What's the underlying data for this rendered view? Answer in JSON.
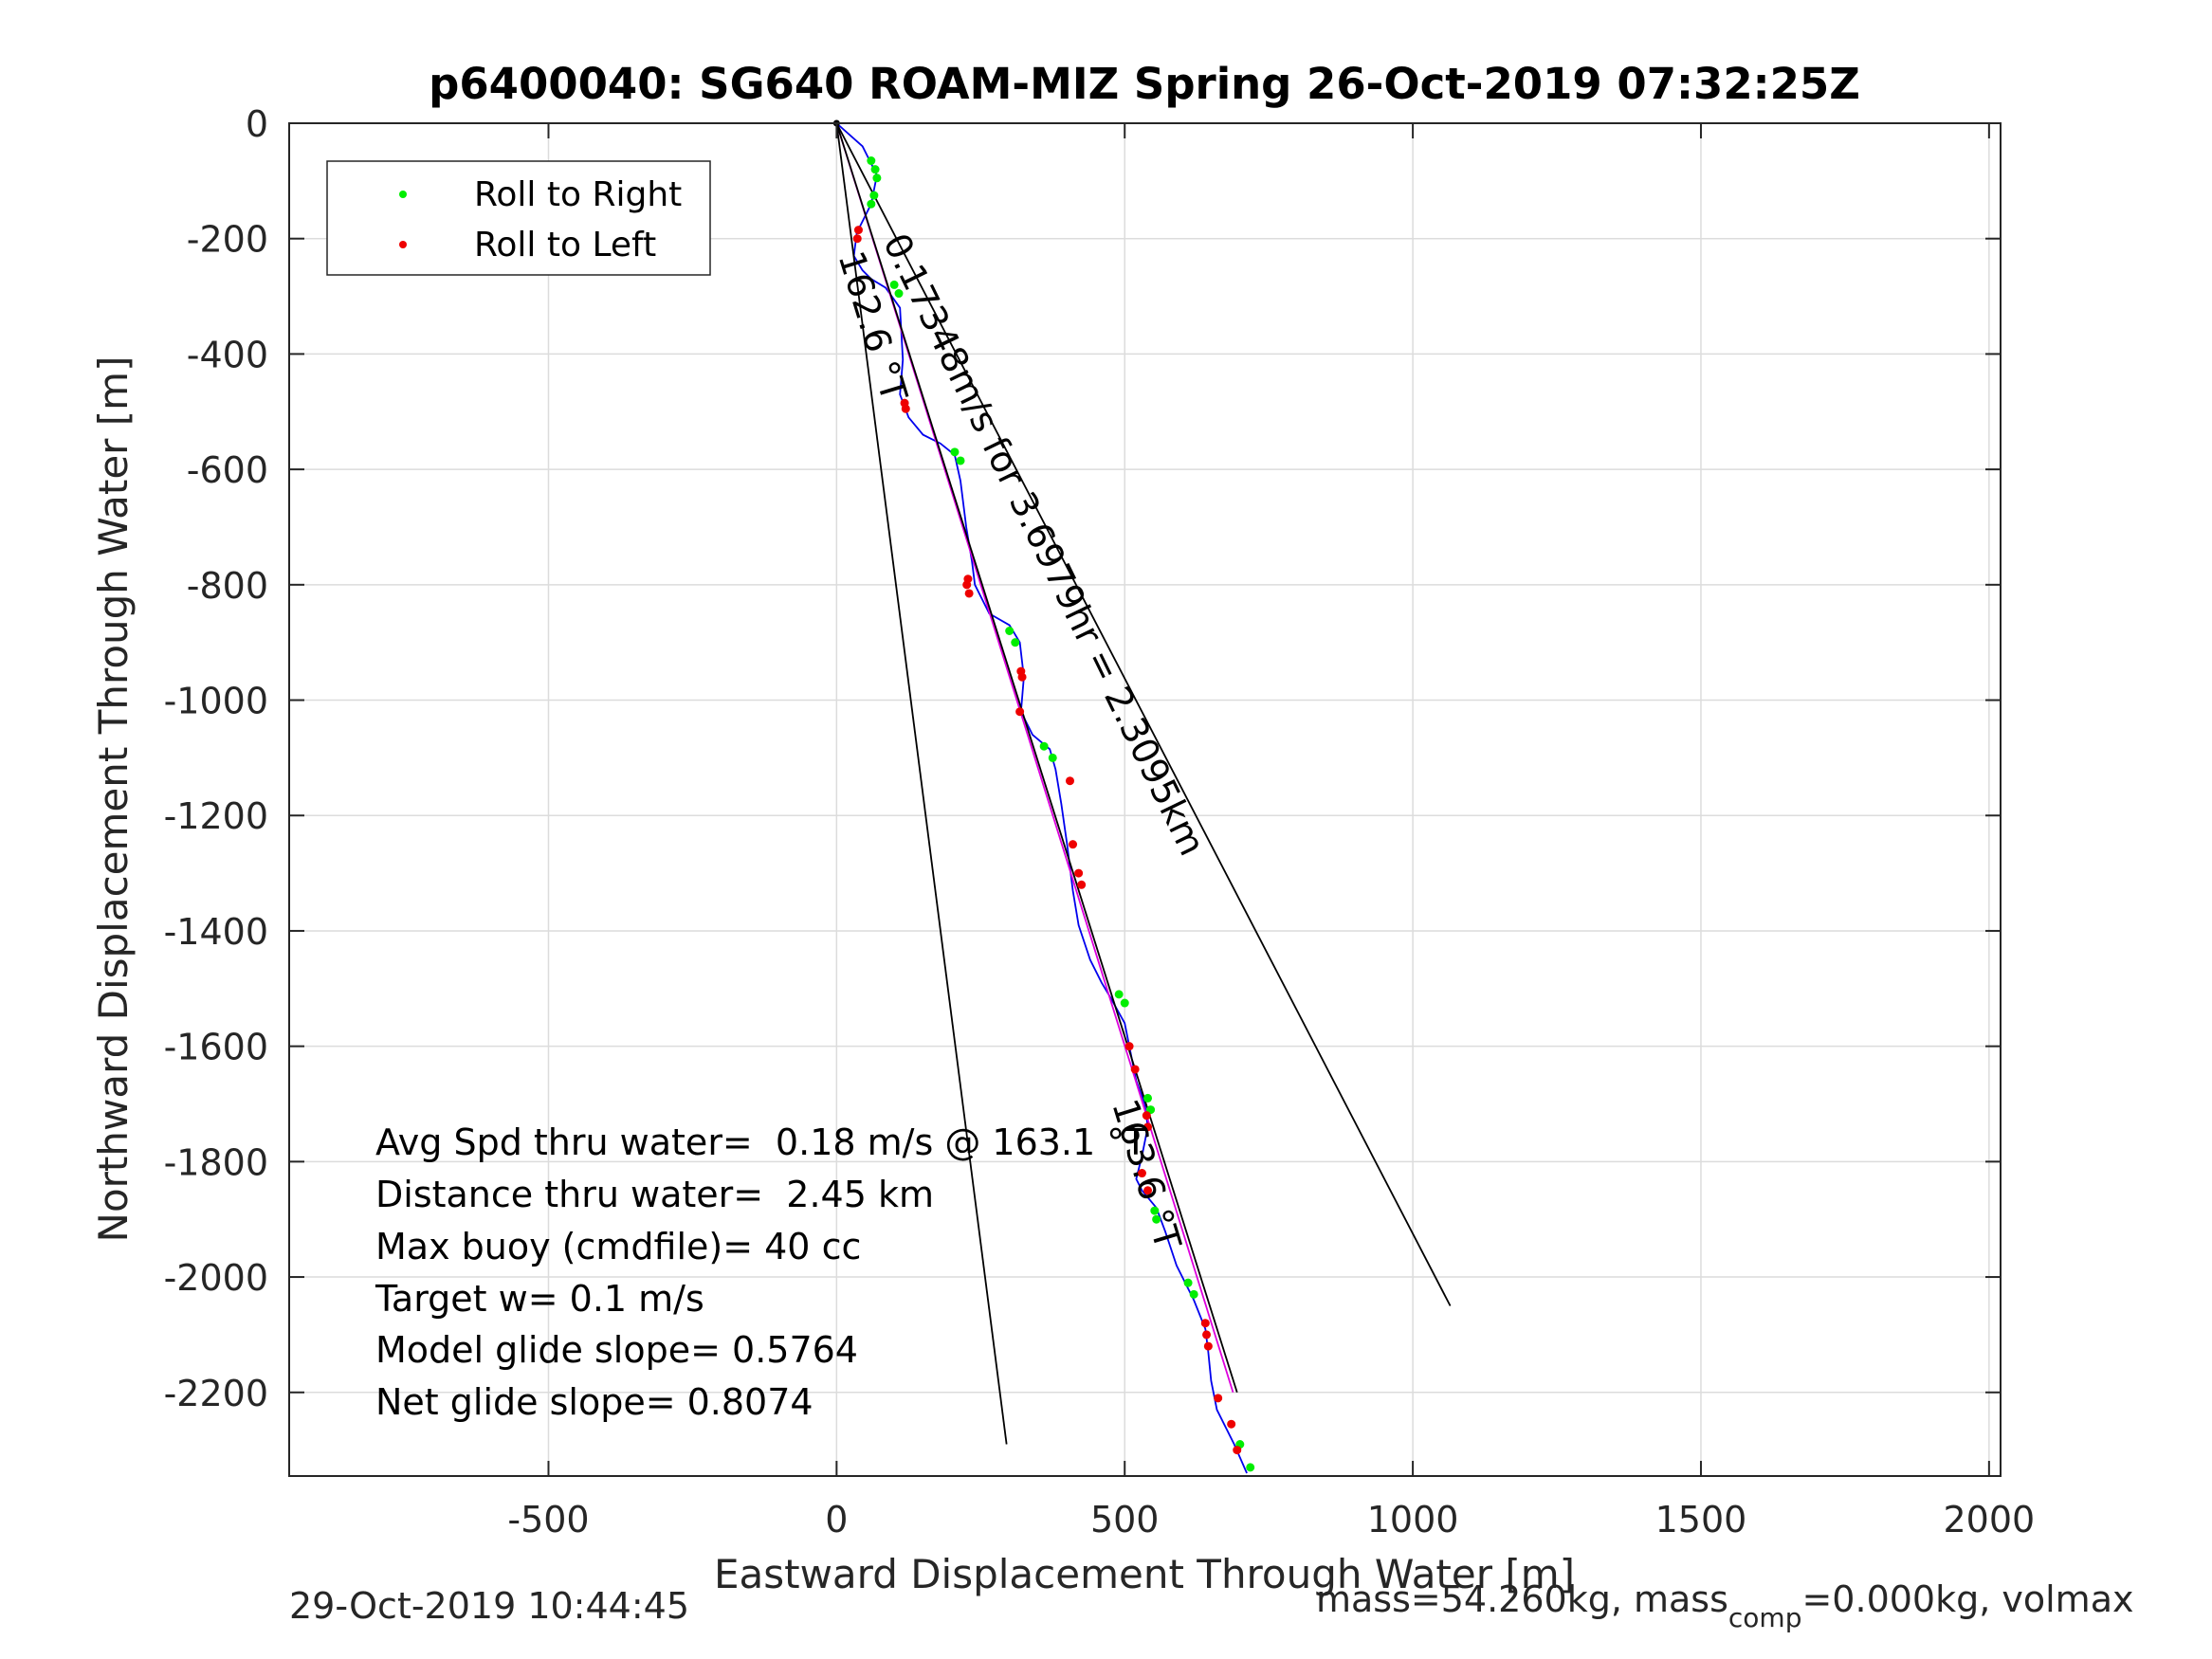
{
  "chart_data": {
    "type": "scatter",
    "title": "p6400040: SG640 ROAM-MIZ Spring 26-Oct-2019 07:32:25Z",
    "xlabel": "Eastward Displacement Through Water [m]",
    "ylabel": "Northward Displacement Through Water [m]",
    "xlim": [
      -950,
      2020
    ],
    "ylim": [
      -2345,
      0
    ],
    "xticks": [
      -500,
      0,
      500,
      1000,
      1500,
      2000
    ],
    "xtick_labels": [
      "-500",
      "0",
      "500",
      "1000",
      "1500",
      "2000"
    ],
    "yticks": [
      0,
      -200,
      -400,
      -600,
      -800,
      -1000,
      -1200,
      -1400,
      -1600,
      -1800,
      -2000,
      -2200
    ],
    "ytick_labels": [
      "0",
      "-200",
      "-400",
      "-600",
      "-800",
      "-1000",
      "-1200",
      "-1400",
      "-1600",
      "-1800",
      "-2000",
      "-2200"
    ],
    "grid": true,
    "legend": {
      "placement": "top-left",
      "entries": [
        {
          "label": "Roll to Right",
          "color": "#00ee00"
        },
        {
          "label": "Roll to Left",
          "color": "#ee0000"
        }
      ]
    },
    "series": [
      {
        "name": "Roll to Right",
        "kind": "points",
        "color": "#00ee00",
        "x": [
          60,
          67,
          70,
          65,
          60,
          100,
          108,
          205,
          215,
          300,
          310,
          360,
          375,
          490,
          500,
          540,
          545,
          552,
          555,
          610,
          620,
          700,
          718
        ],
        "y": [
          -65,
          -80,
          -95,
          -125,
          -140,
          -280,
          -295,
          -570,
          -585,
          -880,
          -900,
          -1080,
          -1100,
          -1510,
          -1525,
          -1690,
          -1710,
          -1885,
          -1900,
          -2010,
          -2030,
          -2290,
          -2330
        ]
      },
      {
        "name": "Roll to Left",
        "kind": "points",
        "color": "#ee0000",
        "x": [
          38,
          36,
          118,
          120,
          228,
          226,
          230,
          320,
          322,
          318,
          405,
          410,
          420,
          425,
          508,
          518,
          538,
          540,
          530,
          540,
          640,
          642,
          645,
          662,
          685,
          695
        ],
        "y": [
          -185,
          -200,
          -485,
          -495,
          -790,
          -800,
          -815,
          -950,
          -960,
          -1020,
          -1140,
          -1250,
          -1300,
          -1320,
          -1600,
          -1640,
          -1720,
          -1740,
          -1820,
          -1850,
          -2080,
          -2100,
          -2120,
          -2210,
          -2255,
          -2300
        ]
      },
      {
        "name": "",
        "kind": "line",
        "color": "#0000ee",
        "x": [
          0,
          45,
          70,
          60,
          35,
          30,
          45,
          60,
          85,
          110,
          115,
          110,
          125,
          150,
          180,
          205,
          215,
          225,
          235,
          240,
          265,
          300,
          318,
          325,
          320,
          340,
          370,
          380,
          390,
          400,
          410,
          420,
          440,
          460,
          475,
          500,
          510,
          520,
          535,
          540,
          530,
          520,
          530,
          555,
          570,
          590,
          620,
          640,
          645,
          650,
          660,
          690,
          712
        ],
        "y": [
          0,
          -40,
          -90,
          -140,
          -190,
          -230,
          -255,
          -270,
          -285,
          -320,
          -410,
          -470,
          -510,
          -540,
          -555,
          -575,
          -620,
          -700,
          -760,
          -800,
          -850,
          -870,
          -900,
          -960,
          -1020,
          -1060,
          -1085,
          -1120,
          -1180,
          -1250,
          -1330,
          -1390,
          -1450,
          -1490,
          -1515,
          -1560,
          -1610,
          -1660,
          -1700,
          -1740,
          -1790,
          -1830,
          -1850,
          -1880,
          -1920,
          -1980,
          -2040,
          -2090,
          -2130,
          -2180,
          -2230,
          -2290,
          -2340
        ]
      },
      {
        "name": "",
        "kind": "line",
        "color": "#dd00dd",
        "x": [
          0,
          688
        ],
        "y": [
          0,
          -2200
        ]
      },
      {
        "name": "",
        "kind": "line",
        "color": "#000000",
        "x": [
          0,
          695
        ],
        "y": [
          0,
          -2200
        ]
      },
      {
        "name": "",
        "kind": "line",
        "color": "#000000",
        "x": [
          0,
          295
        ],
        "y": [
          0,
          -2290
        ]
      },
      {
        "name": "",
        "kind": "line",
        "color": "#000000",
        "x": [
          0,
          1065
        ],
        "y": [
          0,
          -2050
        ]
      }
    ],
    "annotations": [
      {
        "text": "162.6 °T",
        "x": 3,
        "y": -230,
        "rotate": 73
      },
      {
        "text": "0.17348m/s for 3.6979hr = 2.3095km",
        "x": 80,
        "y": -205,
        "rotate": 64
      },
      {
        "text": "163.6 °T",
        "x": 478,
        "y": -1700,
        "rotate": 73
      }
    ],
    "info_lines": [
      "Avg Spd thru water=  0.18 m/s @ 163.1 °T",
      "Distance thru water=  2.45 km",
      "Max buoy (cmdfile)= 40 cc",
      "Target w= 0.1 m/s",
      "Model glide slope= 0.5764",
      "Net glide slope= 0.8074"
    ]
  },
  "footer": {
    "timestamp": "29-Oct-2019 10:44:45",
    "mass_prefix": "mass=54.260kg, mass",
    "mass_sub": "comp",
    "mass_suffix": "=0.000kg, volmax"
  }
}
